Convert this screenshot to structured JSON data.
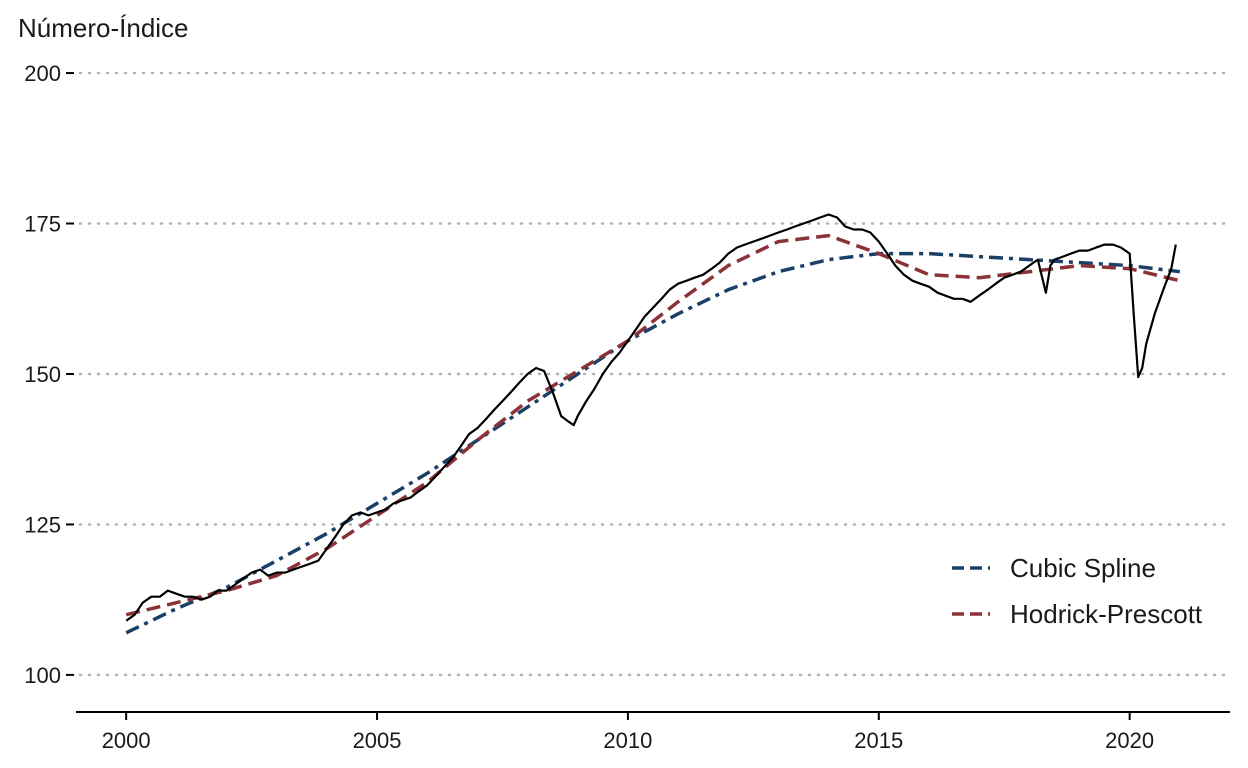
{
  "chart_data": {
    "type": "line",
    "ylabel": "Número-Índice",
    "xlabel": "",
    "title": "",
    "xlim": [
      1999,
      2022
    ],
    "ylim": [
      95,
      203
    ],
    "x_ticks": [
      2000,
      2005,
      2010,
      2015,
      2020
    ],
    "y_ticks": [
      100,
      125,
      150,
      175,
      200
    ],
    "grid": "horizontal-dotted",
    "legend_position": "bottom-right",
    "legend": [
      "Cubic Spline",
      "Hodrick-Prescott"
    ],
    "series": [
      {
        "name": "",
        "color": "#000000",
        "style": "solid",
        "x": [
          2000.0,
          2000.17,
          2000.33,
          2000.5,
          2000.67,
          2000.83,
          2001.0,
          2001.17,
          2001.33,
          2001.5,
          2001.67,
          2001.83,
          2002.0,
          2002.17,
          2002.33,
          2002.5,
          2002.67,
          2002.83,
          2003.0,
          2003.17,
          2003.33,
          2003.5,
          2003.67,
          2003.83,
          2004.0,
          2004.17,
          2004.33,
          2004.5,
          2004.67,
          2004.83,
          2005.0,
          2005.17,
          2005.33,
          2005.5,
          2005.67,
          2005.83,
          2006.0,
          2006.17,
          2006.33,
          2006.5,
          2006.67,
          2006.83,
          2007.0,
          2007.17,
          2007.33,
          2007.5,
          2007.67,
          2007.83,
          2008.0,
          2008.17,
          2008.33,
          2008.5,
          2008.67,
          2008.83,
          2008.92,
          2009.0,
          2009.17,
          2009.33,
          2009.5,
          2009.67,
          2009.83,
          2010.0,
          2010.17,
          2010.33,
          2010.5,
          2010.67,
          2010.83,
          2011.0,
          2011.17,
          2011.33,
          2011.5,
          2011.67,
          2011.83,
          2012.0,
          2012.17,
          2012.33,
          2012.5,
          2012.67,
          2012.83,
          2013.0,
          2013.17,
          2013.33,
          2013.5,
          2013.67,
          2013.83,
          2014.0,
          2014.17,
          2014.33,
          2014.5,
          2014.67,
          2014.83,
          2015.0,
          2015.17,
          2015.33,
          2015.5,
          2015.67,
          2015.83,
          2016.0,
          2016.17,
          2016.33,
          2016.5,
          2016.67,
          2016.83,
          2017.0,
          2017.17,
          2017.33,
          2017.5,
          2017.67,
          2017.83,
          2018.0,
          2018.17,
          2018.33,
          2018.42,
          2018.5,
          2018.67,
          2018.83,
          2019.0,
          2019.17,
          2019.33,
          2019.5,
          2019.67,
          2019.83,
          2020.0,
          2020.08,
          2020.17,
          2020.25,
          2020.33,
          2020.5,
          2020.67,
          2020.83,
          2020.92
        ],
        "y": [
          109,
          110,
          112,
          113,
          113,
          114,
          113.5,
          113,
          113,
          112.5,
          113,
          114,
          114,
          115,
          116,
          117,
          117.5,
          116.5,
          117,
          117,
          117.5,
          118,
          118.5,
          119,
          121,
          123,
          125,
          126.5,
          127,
          126.5,
          127,
          127.5,
          128.5,
          129,
          129.5,
          130.5,
          131.5,
          133,
          134.5,
          136,
          138,
          140,
          141,
          142.5,
          144,
          145.5,
          147,
          148.5,
          150,
          151,
          150.5,
          147,
          143,
          142,
          141.5,
          143,
          145.5,
          147.5,
          150,
          152,
          153.5,
          155.5,
          157.5,
          159.5,
          161,
          162.5,
          164,
          165,
          165.5,
          166,
          166.5,
          167.5,
          168.5,
          170,
          171,
          171.5,
          172,
          172.5,
          173,
          173.5,
          174,
          174.5,
          175,
          175.5,
          176,
          176.5,
          176,
          174.5,
          174,
          174,
          173.5,
          172,
          170,
          168,
          166.5,
          165.5,
          165,
          164.5,
          163.5,
          163,
          162.5,
          162.5,
          162,
          163,
          164,
          165,
          166,
          166.5,
          167,
          168,
          169,
          163.5,
          168,
          169,
          169.5,
          170,
          170.5,
          170.5,
          171,
          171.5,
          171.5,
          171,
          170,
          160,
          149.5,
          151,
          155,
          160,
          164,
          167.5,
          171.5
        ]
      },
      {
        "name": "Cubic Spline",
        "color": "#1a4068",
        "style": "dashdot",
        "x": [
          2000,
          2001,
          2002,
          2003,
          2004,
          2005,
          2006,
          2007,
          2008,
          2009,
          2010,
          2011,
          2012,
          2013,
          2014,
          2015,
          2016,
          2017,
          2018,
          2019,
          2020,
          2021
        ],
        "y": [
          107,
          111,
          114.5,
          119,
          123.5,
          128.5,
          133.5,
          139,
          144.5,
          150,
          155.5,
          160,
          164,
          167,
          169,
          170,
          170,
          169.5,
          169,
          168.5,
          168,
          167
        ]
      },
      {
        "name": "Hodrick-Prescott",
        "color": "#8b3238",
        "style": "dashed",
        "x": [
          2000,
          2001,
          2002,
          2003,
          2004,
          2005,
          2006,
          2007,
          2008,
          2009,
          2010,
          2011,
          2012,
          2013,
          2014,
          2015,
          2016,
          2017,
          2018,
          2019,
          2020,
          2021
        ],
        "y": [
          110,
          112,
          114,
          116.5,
          121,
          126.5,
          132,
          139,
          145.5,
          150.5,
          155.5,
          162,
          168,
          172,
          173,
          170,
          166.5,
          166,
          167,
          168,
          167.5,
          165.5
        ]
      }
    ]
  }
}
